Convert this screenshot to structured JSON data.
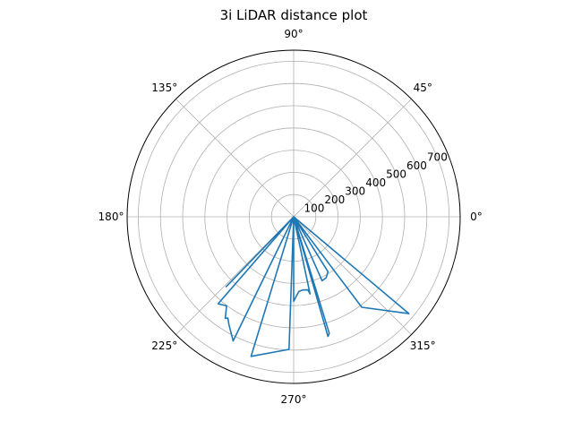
{
  "chart_data": {
    "type": "line",
    "projection": "polar",
    "title": "3i LiDAR distance plot",
    "theta_unit": "degrees",
    "theta_ticks": [
      0,
      45,
      90,
      135,
      180,
      225,
      270,
      315
    ],
    "theta_tick_labels": [
      "0°",
      "45°",
      "90°",
      "135°",
      "180°",
      "225°",
      "270°",
      "315°"
    ],
    "r_ticks": [
      100,
      200,
      300,
      400,
      500,
      600,
      700
    ],
    "r_tick_labels": [
      "100",
      "200",
      "300",
      "400",
      "500",
      "600",
      "700"
    ],
    "rlim": [
      0,
      750
    ],
    "grid": true,
    "series": [
      {
        "color": "#1f77b4",
        "points": [
          {
            "theta": 0,
            "r": 0
          },
          {
            "theta": 226,
            "r": 437
          },
          {
            "theta": 0,
            "r": 0
          },
          {
            "theta": 229,
            "r": 519
          },
          {
            "theta": 233,
            "r": 502
          },
          {
            "theta": 236,
            "r": 551
          },
          {
            "theta": 237,
            "r": 544
          },
          {
            "theta": 239,
            "r": 566
          },
          {
            "theta": 244,
            "r": 622
          },
          {
            "theta": 0,
            "r": 0
          },
          {
            "theta": 253,
            "r": 657
          },
          {
            "theta": 268,
            "r": 597
          },
          {
            "theta": 0,
            "r": 0
          },
          {
            "theta": 270,
            "r": 380
          },
          {
            "theta": 274,
            "r": 337
          },
          {
            "theta": 277,
            "r": 332
          },
          {
            "theta": 281,
            "r": 335
          },
          {
            "theta": 282,
            "r": 355
          },
          {
            "theta": 0,
            "r": 0
          },
          {
            "theta": 286,
            "r": 560
          },
          {
            "theta": 287,
            "r": 549
          },
          {
            "theta": 0,
            "r": 0
          },
          {
            "theta": 294,
            "r": 315
          },
          {
            "theta": 298,
            "r": 311
          },
          {
            "theta": 302,
            "r": 292
          },
          {
            "theta": 0,
            "r": 0
          },
          {
            "theta": 307,
            "r": 510
          },
          {
            "theta": 320,
            "r": 678
          },
          {
            "theta": 0,
            "r": 0
          }
        ]
      }
    ]
  }
}
